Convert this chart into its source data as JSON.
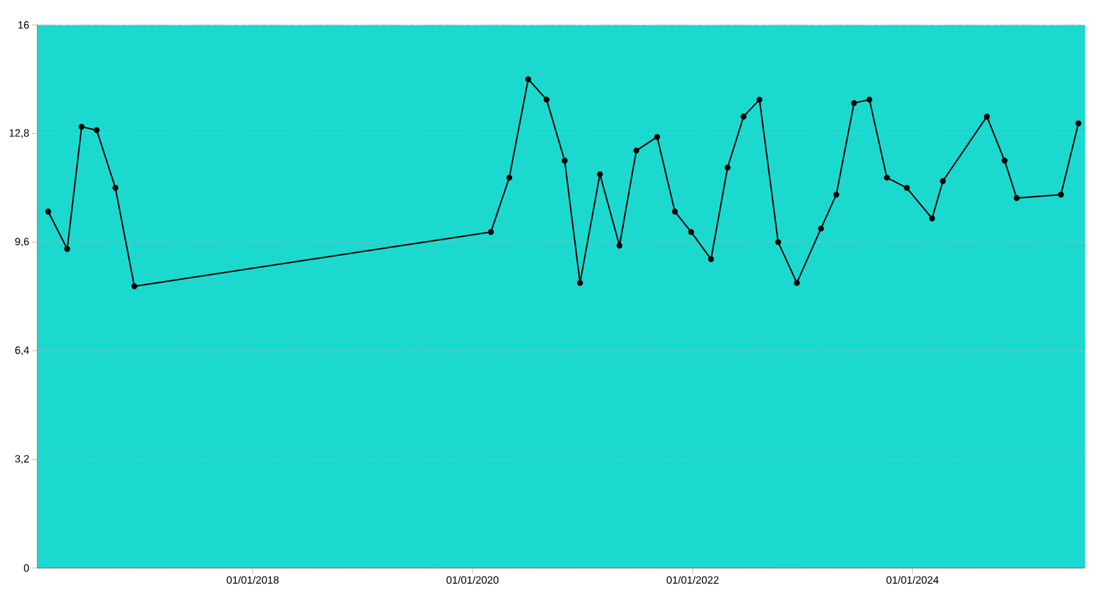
{
  "chart_data": {
    "type": "line",
    "color": "#000000",
    "marker": "circle",
    "line_style": "solid",
    "grid": "y",
    "x": [
      "2016-02-22",
      "2016-04-25",
      "2016-06-12",
      "2016-08-01",
      "2016-10-02",
      "2016-12-04",
      "2020-03-02",
      "2020-05-02",
      "2020-07-04",
      "2020-09-03",
      "2020-11-02",
      "2020-12-23",
      "2021-02-27",
      "2021-05-03",
      "2021-06-28",
      "2021-09-05",
      "2021-11-03",
      "2021-12-27",
      "2022-03-03",
      "2022-04-27",
      "2022-06-19",
      "2022-08-11",
      "2022-10-12",
      "2022-12-13",
      "2023-03-03",
      "2023-04-23",
      "2023-06-21",
      "2023-08-11",
      "2023-10-08",
      "2023-12-13",
      "2024-03-06",
      "2024-04-11",
      "2024-09-04",
      "2024-11-02",
      "2024-12-12",
      "2025-05-08",
      "2025-07-05"
    ],
    "values": [
      10.5,
      9.4,
      13.0,
      12.9,
      11.2,
      8.3,
      9.9,
      11.5,
      14.4,
      13.8,
      12.0,
      8.4,
      11.6,
      9.5,
      12.3,
      12.7,
      10.5,
      9.9,
      9.1,
      11.8,
      13.3,
      13.8,
      9.6,
      8.4,
      10.0,
      11.0,
      13.7,
      13.8,
      11.5,
      11.2,
      10.3,
      11.4,
      13.3,
      12.0,
      10.9,
      11.0,
      13.1
    ],
    "xlim": [
      "2016-01-17",
      "2025-07-27"
    ],
    "xticks": [
      {
        "value": "2018-01-01",
        "label": "01/01/2018"
      },
      {
        "value": "2020-01-01",
        "label": "01/01/2020"
      },
      {
        "value": "2022-01-01",
        "label": "01/01/2022"
      },
      {
        "value": "2024-01-01",
        "label": "01/01/2024"
      }
    ],
    "ylim": [
      0,
      16
    ],
    "yticks": [
      0,
      {
        "value": 3.2,
        "label": "3,2"
      },
      {
        "value": 6.4,
        "label": "6,4"
      },
      {
        "value": 9.6,
        "label": "9,6"
      },
      {
        "value": 12.8,
        "label": "12,8"
      },
      16
    ]
  }
}
